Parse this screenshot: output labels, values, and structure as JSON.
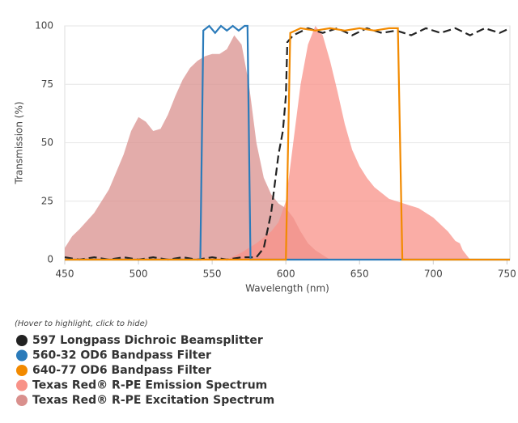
{
  "chart_data": {
    "type": "line",
    "x_label": "Wavelength (nm)",
    "y_label": "Transmission (%)",
    "xlim": [
      450,
      752
    ],
    "ylim": [
      0,
      100
    ],
    "xticks": [
      450,
      500,
      550,
      600,
      650,
      700,
      750
    ],
    "yticks": [
      0,
      25,
      50,
      75,
      100
    ],
    "legend_hint": "(Hover to highlight, click to hide)",
    "series": [
      {
        "name": "Texas Red® R-PE Excitation Spectrum",
        "color": "#d9908d",
        "fill": true,
        "dashed": false,
        "x": [
          450,
          455,
          460,
          470,
          480,
          490,
          495,
          500,
          505,
          510,
          515,
          520,
          525,
          530,
          535,
          540,
          545,
          550,
          555,
          560,
          565,
          570,
          575,
          580,
          585,
          590,
          595,
          600,
          605,
          610,
          615,
          620,
          625,
          630
        ],
        "values": [
          5,
          10,
          13,
          20,
          30,
          45,
          55,
          61,
          59,
          55,
          56,
          62,
          70,
          77,
          82,
          85,
          87,
          88,
          88,
          90,
          96,
          92,
          75,
          50,
          35,
          28,
          24,
          22,
          18,
          12,
          7,
          4,
          2,
          0
        ]
      },
      {
        "name": "Texas Red® R-PE Emission Spectrum",
        "color": "#f89288",
        "fill": true,
        "dashed": false,
        "x": [
          560,
          570,
          580,
          590,
          595,
          600,
          605,
          610,
          615,
          620,
          625,
          630,
          635,
          640,
          645,
          650,
          655,
          660,
          670,
          680,
          690,
          700,
          710,
          715,
          718,
          720,
          725
        ],
        "values": [
          0,
          3,
          7,
          12,
          16,
          25,
          50,
          75,
          92,
          100,
          96,
          85,
          72,
          58,
          47,
          40,
          35,
          31,
          26,
          24,
          22,
          18,
          12,
          8,
          7,
          4,
          0
        ]
      },
      {
        "name": "597 Longpass Dichroic Beamsplitter",
        "color": "#222222",
        "fill": false,
        "dashed": true,
        "x": [
          450,
          460,
          470,
          480,
          490,
          500,
          510,
          520,
          530,
          540,
          550,
          560,
          570,
          580,
          585,
          590,
          595,
          598,
          600,
          601,
          605,
          615,
          625,
          635,
          645,
          655,
          665,
          675,
          685,
          695,
          705,
          715,
          725,
          735,
          745,
          752
        ],
        "values": [
          1,
          0,
          1,
          0,
          1,
          0,
          1,
          0,
          1,
          0,
          1,
          0,
          1,
          1,
          5,
          20,
          45,
          55,
          70,
          93,
          96,
          99,
          97,
          99,
          96,
          99,
          97,
          98,
          96,
          99,
          97,
          99,
          96,
          99,
          97,
          99
        ]
      },
      {
        "name": "560-32 OD6 Bandpass Filter",
        "color": "#2b7bba",
        "fill": false,
        "dashed": false,
        "x": [
          450,
          542,
          544,
          548,
          552,
          556,
          560,
          564,
          568,
          572,
          574,
          576,
          752
        ],
        "values": [
          0,
          0,
          98,
          100,
          97,
          100,
          98,
          100,
          98,
          100,
          100,
          0,
          0
        ]
      },
      {
        "name": "640-77 OD6 Bandpass Filter",
        "color": "#f28a00",
        "fill": false,
        "dashed": false,
        "x": [
          450,
          600,
          603,
          610,
          620,
          630,
          640,
          650,
          660,
          670,
          676,
          679,
          752
        ],
        "values": [
          0,
          0,
          97,
          99,
          98,
          99,
          98,
          99,
          98,
          99,
          99,
          0,
          0
        ]
      }
    ],
    "legend_order": [
      2,
      3,
      4,
      1,
      0
    ]
  }
}
